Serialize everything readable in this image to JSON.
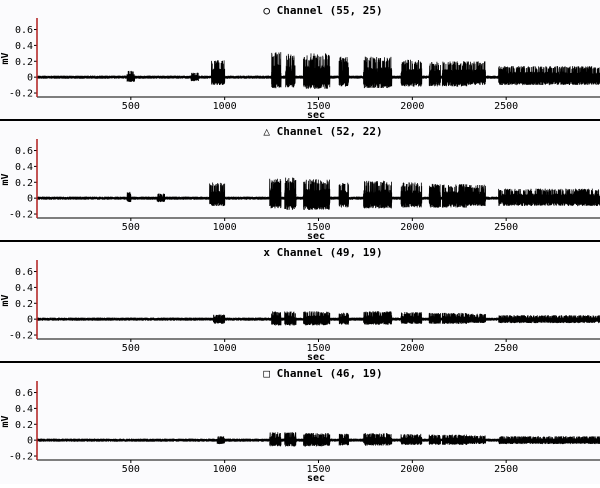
{
  "colors": {
    "background": "#fbfbfd",
    "trace": "#000000",
    "axis": "#000000",
    "divider": "#000000",
    "marker": "#b01c1c"
  },
  "chart_data": [
    {
      "type": "line",
      "title": "○ Channel (55, 25)",
      "xlabel": "sec",
      "ylabel": "mV",
      "xlim": [
        0,
        3000
      ],
      "ylim": [
        -0.25,
        0.72
      ],
      "xticks": [
        500,
        1000,
        1500,
        2000,
        2500
      ],
      "yticks": [
        -0.2,
        0,
        0.2,
        0.4,
        0.6
      ],
      "ytick_labels": [
        "-0.2",
        "0",
        "0.2",
        "0.4",
        "0.6"
      ],
      "marker_x": 0,
      "baseline_noise": 0.02,
      "bursts": [
        {
          "start": 480,
          "end": 520,
          "amplitude": 0.08,
          "dip": 0.06
        },
        {
          "start": 820,
          "end": 860,
          "amplitude": 0.06,
          "dip": 0.05
        },
        {
          "start": 930,
          "end": 1000,
          "amplitude": 0.22,
          "dip": 0.1
        },
        {
          "start": 1250,
          "end": 1300,
          "amplitude": 0.33,
          "dip": 0.14
        },
        {
          "start": 1325,
          "end": 1375,
          "amplitude": 0.3,
          "dip": 0.13
        },
        {
          "start": 1420,
          "end": 1560,
          "amplitude": 0.3,
          "dip": 0.15
        },
        {
          "start": 1610,
          "end": 1660,
          "amplitude": 0.26,
          "dip": 0.12
        },
        {
          "start": 1740,
          "end": 1890,
          "amplitude": 0.26,
          "dip": 0.14
        },
        {
          "start": 1940,
          "end": 2050,
          "amplitude": 0.22,
          "dip": 0.12
        },
        {
          "start": 2090,
          "end": 2150,
          "amplitude": 0.2,
          "dip": 0.12
        },
        {
          "start": 2160,
          "end": 2290,
          "amplitude": 0.2,
          "dip": 0.12
        },
        {
          "start": 2290,
          "end": 2390,
          "amplitude": 0.2,
          "dip": 0.1
        },
        {
          "start": 2460,
          "end": 3000,
          "amplitude": 0.14,
          "dip": 0.1
        }
      ]
    },
    {
      "type": "line",
      "title": "△ Channel (52, 22)",
      "xlabel": "sec",
      "ylabel": "mV",
      "xlim": [
        0,
        3000
      ],
      "ylim": [
        -0.25,
        0.72
      ],
      "xticks": [
        500,
        1000,
        1500,
        2000,
        2500
      ],
      "yticks": [
        -0.2,
        0,
        0.2,
        0.4,
        0.6
      ],
      "ytick_labels": [
        "-0.2",
        "0",
        "0.2",
        "0.4",
        "0.6"
      ],
      "marker_x": 0,
      "baseline_noise": 0.02,
      "bursts": [
        {
          "start": 480,
          "end": 500,
          "amplitude": 0.08,
          "dip": 0.05
        },
        {
          "start": 640,
          "end": 680,
          "amplitude": 0.06,
          "dip": 0.05
        },
        {
          "start": 920,
          "end": 1000,
          "amplitude": 0.2,
          "dip": 0.1
        },
        {
          "start": 1240,
          "end": 1300,
          "amplitude": 0.25,
          "dip": 0.13
        },
        {
          "start": 1320,
          "end": 1380,
          "amplitude": 0.27,
          "dip": 0.15
        },
        {
          "start": 1420,
          "end": 1560,
          "amplitude": 0.24,
          "dip": 0.15
        },
        {
          "start": 1610,
          "end": 1660,
          "amplitude": 0.2,
          "dip": 0.12
        },
        {
          "start": 1740,
          "end": 1890,
          "amplitude": 0.22,
          "dip": 0.13
        },
        {
          "start": 1940,
          "end": 2050,
          "amplitude": 0.2,
          "dip": 0.12
        },
        {
          "start": 2090,
          "end": 2150,
          "amplitude": 0.18,
          "dip": 0.12
        },
        {
          "start": 2160,
          "end": 2290,
          "amplitude": 0.18,
          "dip": 0.12
        },
        {
          "start": 2290,
          "end": 2390,
          "amplitude": 0.17,
          "dip": 0.1
        },
        {
          "start": 2460,
          "end": 3000,
          "amplitude": 0.12,
          "dip": 0.1
        }
      ]
    },
    {
      "type": "line",
      "title": "x Channel (49, 19)",
      "xlabel": "sec",
      "ylabel": "mV",
      "xlim": [
        0,
        3000
      ],
      "ylim": [
        -0.25,
        0.72
      ],
      "xticks": [
        500,
        1000,
        1500,
        2000,
        2500
      ],
      "yticks": [
        -0.2,
        0,
        0.2,
        0.4,
        0.6
      ],
      "ytick_labels": [
        "-0.2",
        "0",
        "0.2",
        "0.4",
        "0.6"
      ],
      "marker_x": 0,
      "baseline_noise": 0.02,
      "bursts": [
        {
          "start": 940,
          "end": 1000,
          "amplitude": 0.06,
          "dip": 0.06
        },
        {
          "start": 1250,
          "end": 1300,
          "amplitude": 0.1,
          "dip": 0.08
        },
        {
          "start": 1320,
          "end": 1380,
          "amplitude": 0.1,
          "dip": 0.08
        },
        {
          "start": 1420,
          "end": 1560,
          "amplitude": 0.1,
          "dip": 0.08
        },
        {
          "start": 1610,
          "end": 1660,
          "amplitude": 0.08,
          "dip": 0.07
        },
        {
          "start": 1740,
          "end": 1890,
          "amplitude": 0.1,
          "dip": 0.07
        },
        {
          "start": 1940,
          "end": 2050,
          "amplitude": 0.09,
          "dip": 0.06
        },
        {
          "start": 2090,
          "end": 2150,
          "amplitude": 0.08,
          "dip": 0.06
        },
        {
          "start": 2160,
          "end": 2290,
          "amplitude": 0.08,
          "dip": 0.06
        },
        {
          "start": 2290,
          "end": 2390,
          "amplitude": 0.07,
          "dip": 0.05
        },
        {
          "start": 2460,
          "end": 3000,
          "amplitude": 0.05,
          "dip": 0.05
        }
      ]
    },
    {
      "type": "line",
      "title": "□ Channel (46, 19)",
      "xlabel": "sec",
      "ylabel": "mV",
      "xlim": [
        0,
        3000
      ],
      "ylim": [
        -0.25,
        0.72
      ],
      "xticks": [
        500,
        1000,
        1500,
        2000,
        2500
      ],
      "yticks": [
        -0.2,
        0,
        0.2,
        0.4,
        0.6
      ],
      "ytick_labels": [
        "-0.2",
        "0",
        "0.2",
        "0.4",
        "0.6"
      ],
      "marker_x": 0,
      "baseline_noise": 0.02,
      "bursts": [
        {
          "start": 960,
          "end": 1000,
          "amplitude": 0.05,
          "dip": 0.05
        },
        {
          "start": 1240,
          "end": 1300,
          "amplitude": 0.1,
          "dip": 0.08
        },
        {
          "start": 1320,
          "end": 1380,
          "amplitude": 0.1,
          "dip": 0.08
        },
        {
          "start": 1420,
          "end": 1560,
          "amplitude": 0.09,
          "dip": 0.08
        },
        {
          "start": 1610,
          "end": 1660,
          "amplitude": 0.08,
          "dip": 0.07
        },
        {
          "start": 1740,
          "end": 1890,
          "amplitude": 0.09,
          "dip": 0.07
        },
        {
          "start": 1940,
          "end": 2050,
          "amplitude": 0.08,
          "dip": 0.06
        },
        {
          "start": 2090,
          "end": 2150,
          "amplitude": 0.07,
          "dip": 0.06
        },
        {
          "start": 2160,
          "end": 2290,
          "amplitude": 0.07,
          "dip": 0.06
        },
        {
          "start": 2290,
          "end": 2390,
          "amplitude": 0.06,
          "dip": 0.05
        },
        {
          "start": 2460,
          "end": 3000,
          "amplitude": 0.05,
          "dip": 0.05
        }
      ]
    }
  ]
}
